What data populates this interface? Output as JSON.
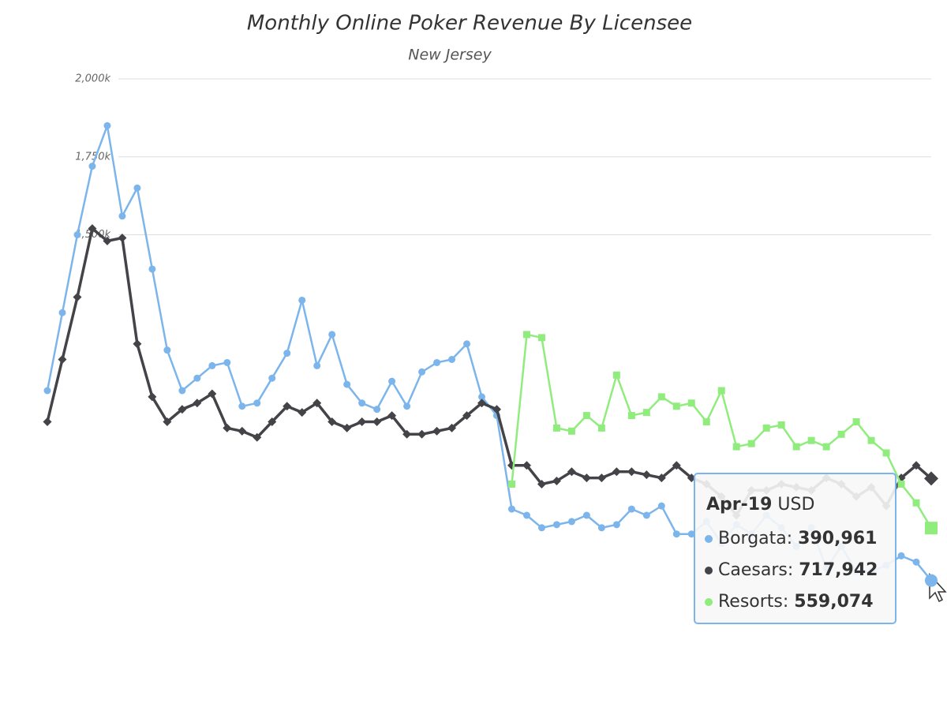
{
  "chart_data": {
    "type": "line",
    "title": "Monthly Online Poker Revenue By Licensee",
    "subtitle": "New Jersey",
    "categories": [
      null,
      null,
      null,
      null,
      null,
      null,
      null,
      null,
      null,
      null,
      null,
      null,
      null,
      null,
      null,
      null,
      null,
      null,
      null,
      null,
      null,
      null,
      null,
      null,
      null,
      null,
      null,
      null,
      null,
      null,
      null,
      null,
      null,
      null,
      null,
      null,
      null,
      null,
      null,
      null,
      null,
      null,
      null,
      null,
      null,
      null,
      null,
      null,
      null,
      null,
      null,
      null,
      null,
      null,
      null,
      null,
      null,
      null,
      null,
      "Apr-19"
    ],
    "series": [
      {
        "name": "Borgata",
        "color": "#7cb5ec",
        "marker": "circle",
        "values": [
          1000000,
          1250000,
          1500000,
          1720000,
          1850000,
          1560000,
          1650000,
          1390000,
          1130000,
          1000000,
          1040000,
          1080000,
          1090000,
          950000,
          960000,
          1040000,
          1120000,
          1290000,
          1080000,
          1180000,
          1020000,
          960000,
          940000,
          1030000,
          950000,
          1060000,
          1090000,
          1100000,
          1150000,
          980000,
          920000,
          620000,
          600000,
          560000,
          570000,
          580000,
          600000,
          560000,
          570000,
          620000,
          600000,
          630000,
          540000,
          540000,
          580000,
          510000,
          570000,
          540000,
          600000,
          560000,
          500000,
          560000,
          430000,
          500000,
          420000,
          420000,
          440000,
          470000,
          450000,
          390961
        ]
      },
      {
        "name": "Caesars",
        "color": "#434348",
        "marker": "diamond",
        "values": [
          900000,
          1100000,
          1300000,
          1520000,
          1480000,
          1490000,
          1150000,
          980000,
          900000,
          940000,
          960000,
          990000,
          880000,
          870000,
          850000,
          900000,
          950000,
          930000,
          960000,
          900000,
          880000,
          900000,
          900000,
          920000,
          860000,
          860000,
          870000,
          880000,
          920000,
          960000,
          940000,
          760000,
          760000,
          700000,
          710000,
          740000,
          720000,
          720000,
          740000,
          740000,
          730000,
          720000,
          760000,
          720000,
          700000,
          660000,
          600000,
          680000,
          680000,
          700000,
          690000,
          680000,
          720000,
          700000,
          660000,
          690000,
          630000,
          720000,
          760000,
          717942
        ]
      },
      {
        "name": "Resorts",
        "color": "#90ed7d",
        "marker": "square",
        "values": [
          null,
          null,
          null,
          null,
          null,
          null,
          null,
          null,
          null,
          null,
          null,
          null,
          null,
          null,
          null,
          null,
          null,
          null,
          null,
          null,
          null,
          null,
          null,
          null,
          null,
          null,
          null,
          null,
          null,
          null,
          null,
          700000,
          1180000,
          1170000,
          880000,
          870000,
          920000,
          880000,
          1050000,
          920000,
          930000,
          980000,
          950000,
          960000,
          900000,
          1000000,
          820000,
          830000,
          880000,
          890000,
          820000,
          840000,
          820000,
          860000,
          900000,
          840000,
          800000,
          700000,
          640000,
          559074
        ]
      }
    ],
    "ylim": [
      0,
      2000000
    ],
    "yticks": [
      {
        "value": 1500000,
        "label": "1,500k"
      },
      {
        "value": 1750000,
        "label": "1,750k"
      },
      {
        "value": 2000000,
        "label": "2,000k"
      }
    ],
    "grid": true,
    "tooltip": {
      "unit": "USD",
      "rows": [
        "390,961",
        "717,942",
        "559,074"
      ]
    }
  }
}
